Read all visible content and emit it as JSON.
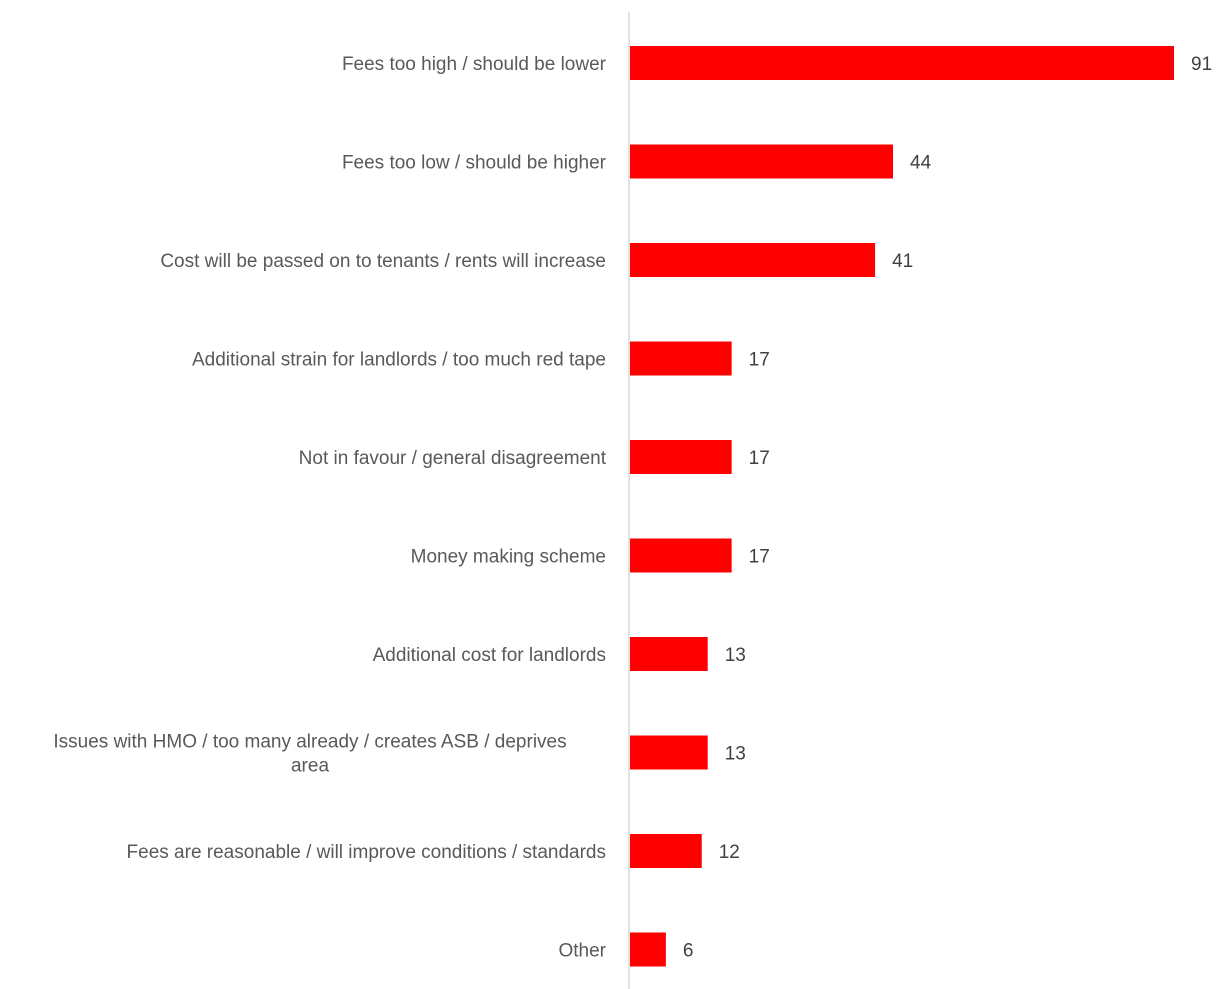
{
  "chart_data": {
    "type": "bar",
    "orientation": "horizontal",
    "categories": [
      "Fees too high / should be lower",
      "Fees too low / should be higher",
      "Cost will be passed on to tenants / rents will increase",
      "Additional strain for landlords / too much red tape",
      "Not in favour / general disagreement",
      "Money making scheme",
      "Additional cost for landlords",
      "Issues with HMO / too many already / creates ASB / deprives area",
      "Fees are reasonable / will improve conditions / standards",
      "Other"
    ],
    "values": [
      91,
      44,
      41,
      17,
      17,
      17,
      13,
      13,
      12,
      6
    ],
    "data_labels": [
      "91",
      "44",
      "41",
      "17",
      "17",
      "17",
      "13",
      "13",
      "12",
      "6"
    ],
    "xlim": [
      0,
      91
    ],
    "grid": false,
    "legend": "none",
    "colors": {
      "bar": "#ff0000",
      "axis": "#d9d9d9",
      "category_text": "#595959",
      "value_text": "#404040"
    }
  }
}
